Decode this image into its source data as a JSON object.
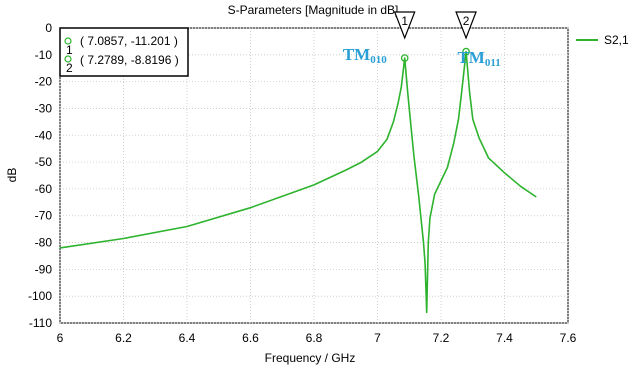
{
  "chart_data": {
    "type": "line",
    "title": "S-Parameters [Magnitude in dB]",
    "xlabel": "Frequency / GHz",
    "ylabel": "dB",
    "xlim": [
      6,
      7.6
    ],
    "ylim": [
      -110,
      0
    ],
    "xticks": [
      "6",
      "6.2",
      "6.4",
      "6.6",
      "6.8",
      "7",
      "7.2",
      "7.4",
      "7.6"
    ],
    "yticks": [
      "0",
      "-10",
      "-20",
      "-30",
      "-40",
      "-50",
      "-60",
      "-70",
      "-80",
      "-90",
      "-100",
      "-110"
    ],
    "grid": true,
    "legend_position": "top-right",
    "series": [
      {
        "name": "S2,1",
        "color": "#2db32d",
        "x": [
          6.0,
          6.2,
          6.4,
          6.6,
          6.8,
          6.9,
          6.95,
          7.0,
          7.03,
          7.05,
          7.065,
          7.075,
          7.0857,
          7.095,
          7.105,
          7.115,
          7.13,
          7.145,
          7.15,
          7.155,
          7.16,
          7.165,
          7.18,
          7.2,
          7.22,
          7.24,
          7.255,
          7.265,
          7.2789,
          7.29,
          7.3,
          7.32,
          7.35,
          7.4,
          7.45,
          7.5
        ],
        "y": [
          -82,
          -78.5,
          -74,
          -67,
          -58.5,
          -53,
          -50,
          -46,
          -41.5,
          -35,
          -28,
          -22,
          -11.201,
          -24,
          -36,
          -48,
          -63,
          -80,
          -88,
          -106,
          -80,
          -71,
          -62,
          -57,
          -52,
          -43,
          -34,
          -24,
          -8.8196,
          -24,
          -34,
          -41,
          -48.5,
          -54,
          -59,
          -63
        ]
      }
    ],
    "markers": [
      {
        "id": "1",
        "x": 7.0857,
        "y": -11.201,
        "label": "( 7.0857, -11.201 )"
      },
      {
        "id": "2",
        "x": 7.2789,
        "y": -8.8196,
        "label": "( 7.2789, -8.8196 )"
      }
    ],
    "annotations": [
      {
        "base": "TM",
        "sub": "010",
        "x": 6.96,
        "y": -12
      },
      {
        "base": "TM",
        "sub": "011",
        "x": 7.32,
        "y": -13
      }
    ]
  }
}
